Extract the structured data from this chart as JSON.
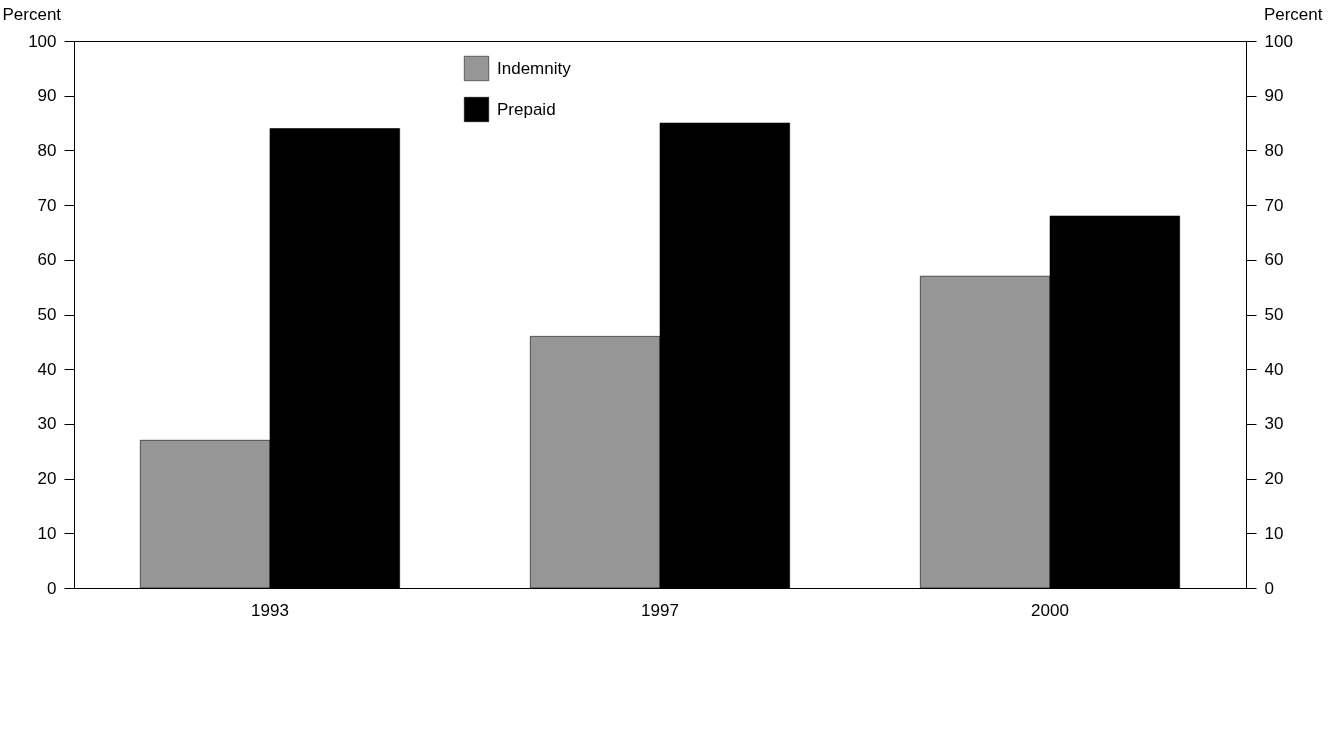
{
  "chart_data": {
    "type": "bar",
    "ylabel": "Percent",
    "y2label": "Percent",
    "categories": [
      "1993",
      "1997",
      "2000"
    ],
    "series": [
      {
        "name": "Indemnity",
        "color": "#969696",
        "values": [
          27,
          46,
          57
        ]
      },
      {
        "name": "Prepaid",
        "color": "#000000",
        "values": [
          84,
          85,
          68
        ]
      }
    ],
    "ylim": [
      0,
      100
    ],
    "yticks": [
      0,
      10,
      20,
      30,
      40,
      50,
      60,
      70,
      80,
      90,
      100
    ],
    "y2lim": [
      0,
      100
    ],
    "y2ticks": [
      0,
      10,
      20,
      30,
      40,
      50,
      60,
      70,
      80,
      90,
      100
    ],
    "grid": false,
    "legend": "top"
  }
}
